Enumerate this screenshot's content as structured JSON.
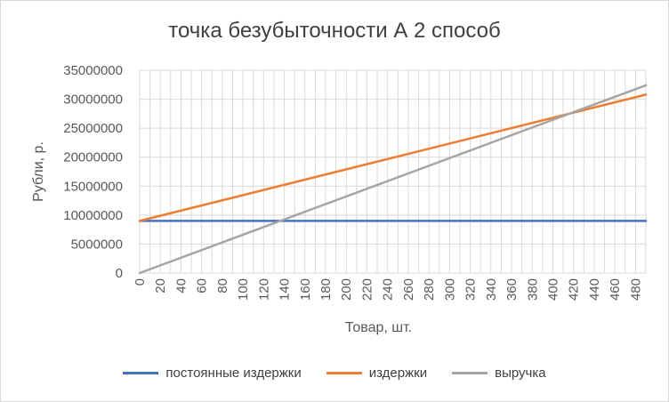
{
  "chart_data": {
    "type": "line",
    "title": "точка безубыточности А 2 способ",
    "xlabel": "Товар, шт.",
    "ylabel": "Рубли, р.",
    "x_ticks": [
      0,
      20,
      40,
      60,
      80,
      100,
      120,
      140,
      160,
      180,
      200,
      220,
      240,
      260,
      280,
      300,
      320,
      340,
      360,
      380,
      400,
      420,
      440,
      460,
      480
    ],
    "x_range": [
      0,
      490
    ],
    "ylim": [
      0,
      35000000
    ],
    "y_ticks": [
      0,
      5000000,
      10000000,
      15000000,
      20000000,
      25000000,
      30000000,
      35000000
    ],
    "grid": true,
    "legend_position": "bottom",
    "series": [
      {
        "name": "постоянные издержки",
        "color": "#4472c4",
        "x": [
          0,
          490
        ],
        "y": [
          9000000,
          9000000
        ]
      },
      {
        "name": "издержки",
        "color": "#ed7d31",
        "x": [
          0,
          490
        ],
        "y": [
          9000000,
          30800000
        ]
      },
      {
        "name": "выручка",
        "color": "#a5a5a5",
        "x": [
          0,
          490
        ],
        "y": [
          0,
          32400000
        ]
      }
    ]
  }
}
